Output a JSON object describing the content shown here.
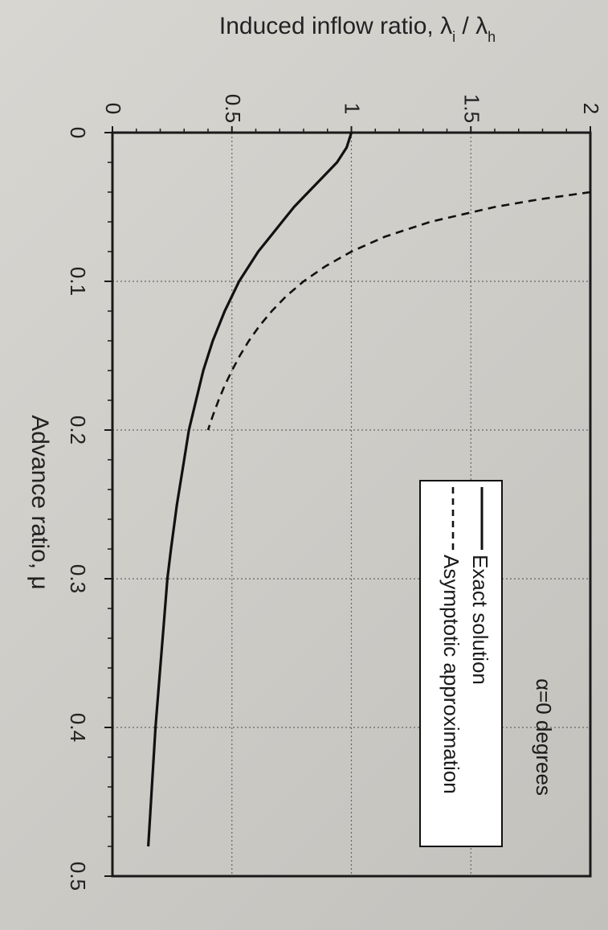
{
  "chart_data": {
    "type": "line",
    "orientation": "rotated-90-clockwise",
    "xlabel": "Advance ratio, μ",
    "ylabel": "Induced inflow ratio, λ",
    "ylabel_sub_i": "i",
    "ylabel_slash": " / λ",
    "ylabel_sub_h": "h",
    "xlim": [
      0,
      0.5
    ],
    "ylim": [
      0,
      2
    ],
    "x_ticks": [
      "0",
      "0.1",
      "0.2",
      "0.3",
      "0.4",
      "0.5"
    ],
    "y_ticks": [
      "0",
      "0.5",
      "1",
      "1.5",
      "2"
    ],
    "grid": true,
    "annotation": "α=0 degrees",
    "legend": {
      "position": "bottom-right",
      "entries": [
        {
          "label": "Exact solution",
          "style": "solid"
        },
        {
          "label": "Asymptotic approximation",
          "style": "dashed"
        }
      ]
    },
    "series": [
      {
        "name": "Exact solution",
        "style": "solid",
        "x": [
          0,
          0.01,
          0.02,
          0.03,
          0.04,
          0.05,
          0.06,
          0.07,
          0.08,
          0.09,
          0.1,
          0.12,
          0.14,
          0.16,
          0.18,
          0.2,
          0.22,
          0.25,
          0.28,
          0.3,
          0.33,
          0.36,
          0.4,
          0.44,
          0.48
        ],
        "values": [
          1.0,
          0.98,
          0.94,
          0.88,
          0.82,
          0.76,
          0.71,
          0.66,
          0.61,
          0.57,
          0.53,
          0.47,
          0.42,
          0.38,
          0.35,
          0.32,
          0.3,
          0.27,
          0.245,
          0.23,
          0.215,
          0.2,
          0.18,
          0.165,
          0.15
        ]
      },
      {
        "name": "Asymptotic approximation",
        "style": "dashed",
        "x": [
          0.04,
          0.045,
          0.05,
          0.06,
          0.07,
          0.08,
          0.09,
          0.1,
          0.11,
          0.12,
          0.13,
          0.14,
          0.15,
          0.16,
          0.17,
          0.18,
          0.19,
          0.2
        ],
        "values": [
          2.0,
          1.78,
          1.6,
          1.33,
          1.14,
          1.0,
          0.89,
          0.8,
          0.727,
          0.667,
          0.615,
          0.571,
          0.533,
          0.5,
          0.47,
          0.444,
          0.421,
          0.4
        ]
      }
    ]
  }
}
